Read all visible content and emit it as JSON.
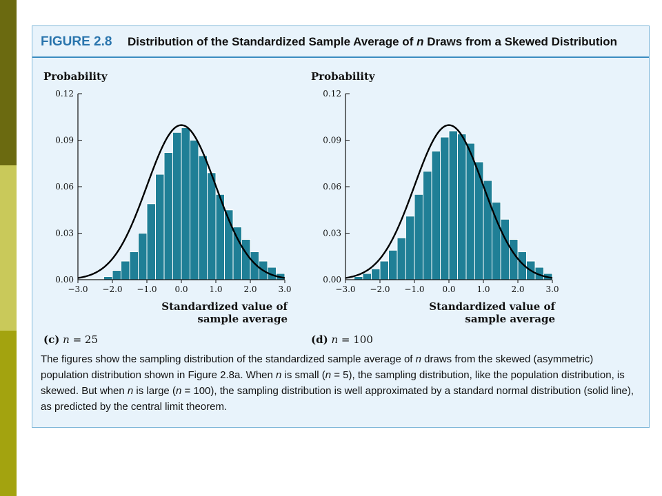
{
  "figure": {
    "number": "FIGURE 2.8",
    "title": "Distribution of the Standardized Sample Average of n Draws from a Skewed Distribution",
    "caption": "The figures show the sampling distribution of the standardized sample average of n draws from the skewed (asymmetric) population distribution shown in Figure 2.8a. When n is small (n = 5), the sampling distribution, like the population distribution, is skewed. But when n is large (n = 100), the sampling distribution is well approximated by a standard normal distribution (solid line), as predicted by the central limit theorem."
  },
  "chart_data": [
    {
      "type": "bar",
      "panel": "(c)",
      "subtitle_label": "(c)",
      "subtitle_n": "n",
      "subtitle_eq": "= 25",
      "ylabel": "Probability",
      "xlabel_line1": "Standardized value of",
      "xlabel_line2": "sample average",
      "xlim": [
        -3.0,
        3.0
      ],
      "ylim": [
        0,
        0.12
      ],
      "yticks": [
        "0.00",
        "0.03",
        "0.06",
        "0.09",
        "0.12"
      ],
      "xticks": [
        "−3.0",
        "−2.0",
        "−1.0",
        "0.0",
        "1.0",
        "2.0",
        "3.0"
      ],
      "bin_width": 0.25,
      "bins_start": [
        -2.25,
        -2.0,
        -1.75,
        -1.5,
        -1.25,
        -1.0,
        -0.75,
        -0.5,
        -0.25,
        0.0,
        0.25,
        0.5,
        0.75,
        1.0,
        1.25,
        1.5,
        1.75,
        2.0,
        2.25,
        2.5,
        2.75
      ],
      "values": [
        0.002,
        0.006,
        0.012,
        0.018,
        0.03,
        0.049,
        0.068,
        0.082,
        0.095,
        0.098,
        0.09,
        0.08,
        0.069,
        0.055,
        0.045,
        0.034,
        0.026,
        0.018,
        0.012,
        0.008,
        0.004
      ],
      "curve": "standard normal density (solid line)",
      "colors": {
        "bar": "#1f7f96",
        "curve": "#000000"
      }
    },
    {
      "type": "bar",
      "panel": "(d)",
      "subtitle_label": "(d)",
      "subtitle_n": "n",
      "subtitle_eq": "= 100",
      "ylabel": "Probability",
      "xlabel_line1": "Standardized value of",
      "xlabel_line2": "sample average",
      "xlim": [
        -3.0,
        3.0
      ],
      "ylim": [
        0,
        0.12
      ],
      "yticks": [
        "0.00",
        "0.03",
        "0.06",
        "0.09",
        "0.12"
      ],
      "xticks": [
        "−3.0",
        "−2.0",
        "−1.0",
        "0.0",
        "1.0",
        "2.0",
        "3.0"
      ],
      "bin_width": 0.25,
      "bins_start": [
        -2.75,
        -2.5,
        -2.25,
        -2.0,
        -1.75,
        -1.5,
        -1.25,
        -1.0,
        -0.75,
        -0.5,
        -0.25,
        0.0,
        0.25,
        0.5,
        0.75,
        1.0,
        1.25,
        1.5,
        1.75,
        2.0,
        2.25,
        2.5,
        2.75
      ],
      "values": [
        0.002,
        0.004,
        0.007,
        0.012,
        0.019,
        0.027,
        0.041,
        0.055,
        0.07,
        0.083,
        0.092,
        0.096,
        0.094,
        0.088,
        0.076,
        0.064,
        0.05,
        0.039,
        0.026,
        0.018,
        0.012,
        0.008,
        0.004
      ],
      "curve": "standard normal density (solid line)",
      "colors": {
        "bar": "#1f7f96",
        "curve": "#000000"
      }
    }
  ]
}
